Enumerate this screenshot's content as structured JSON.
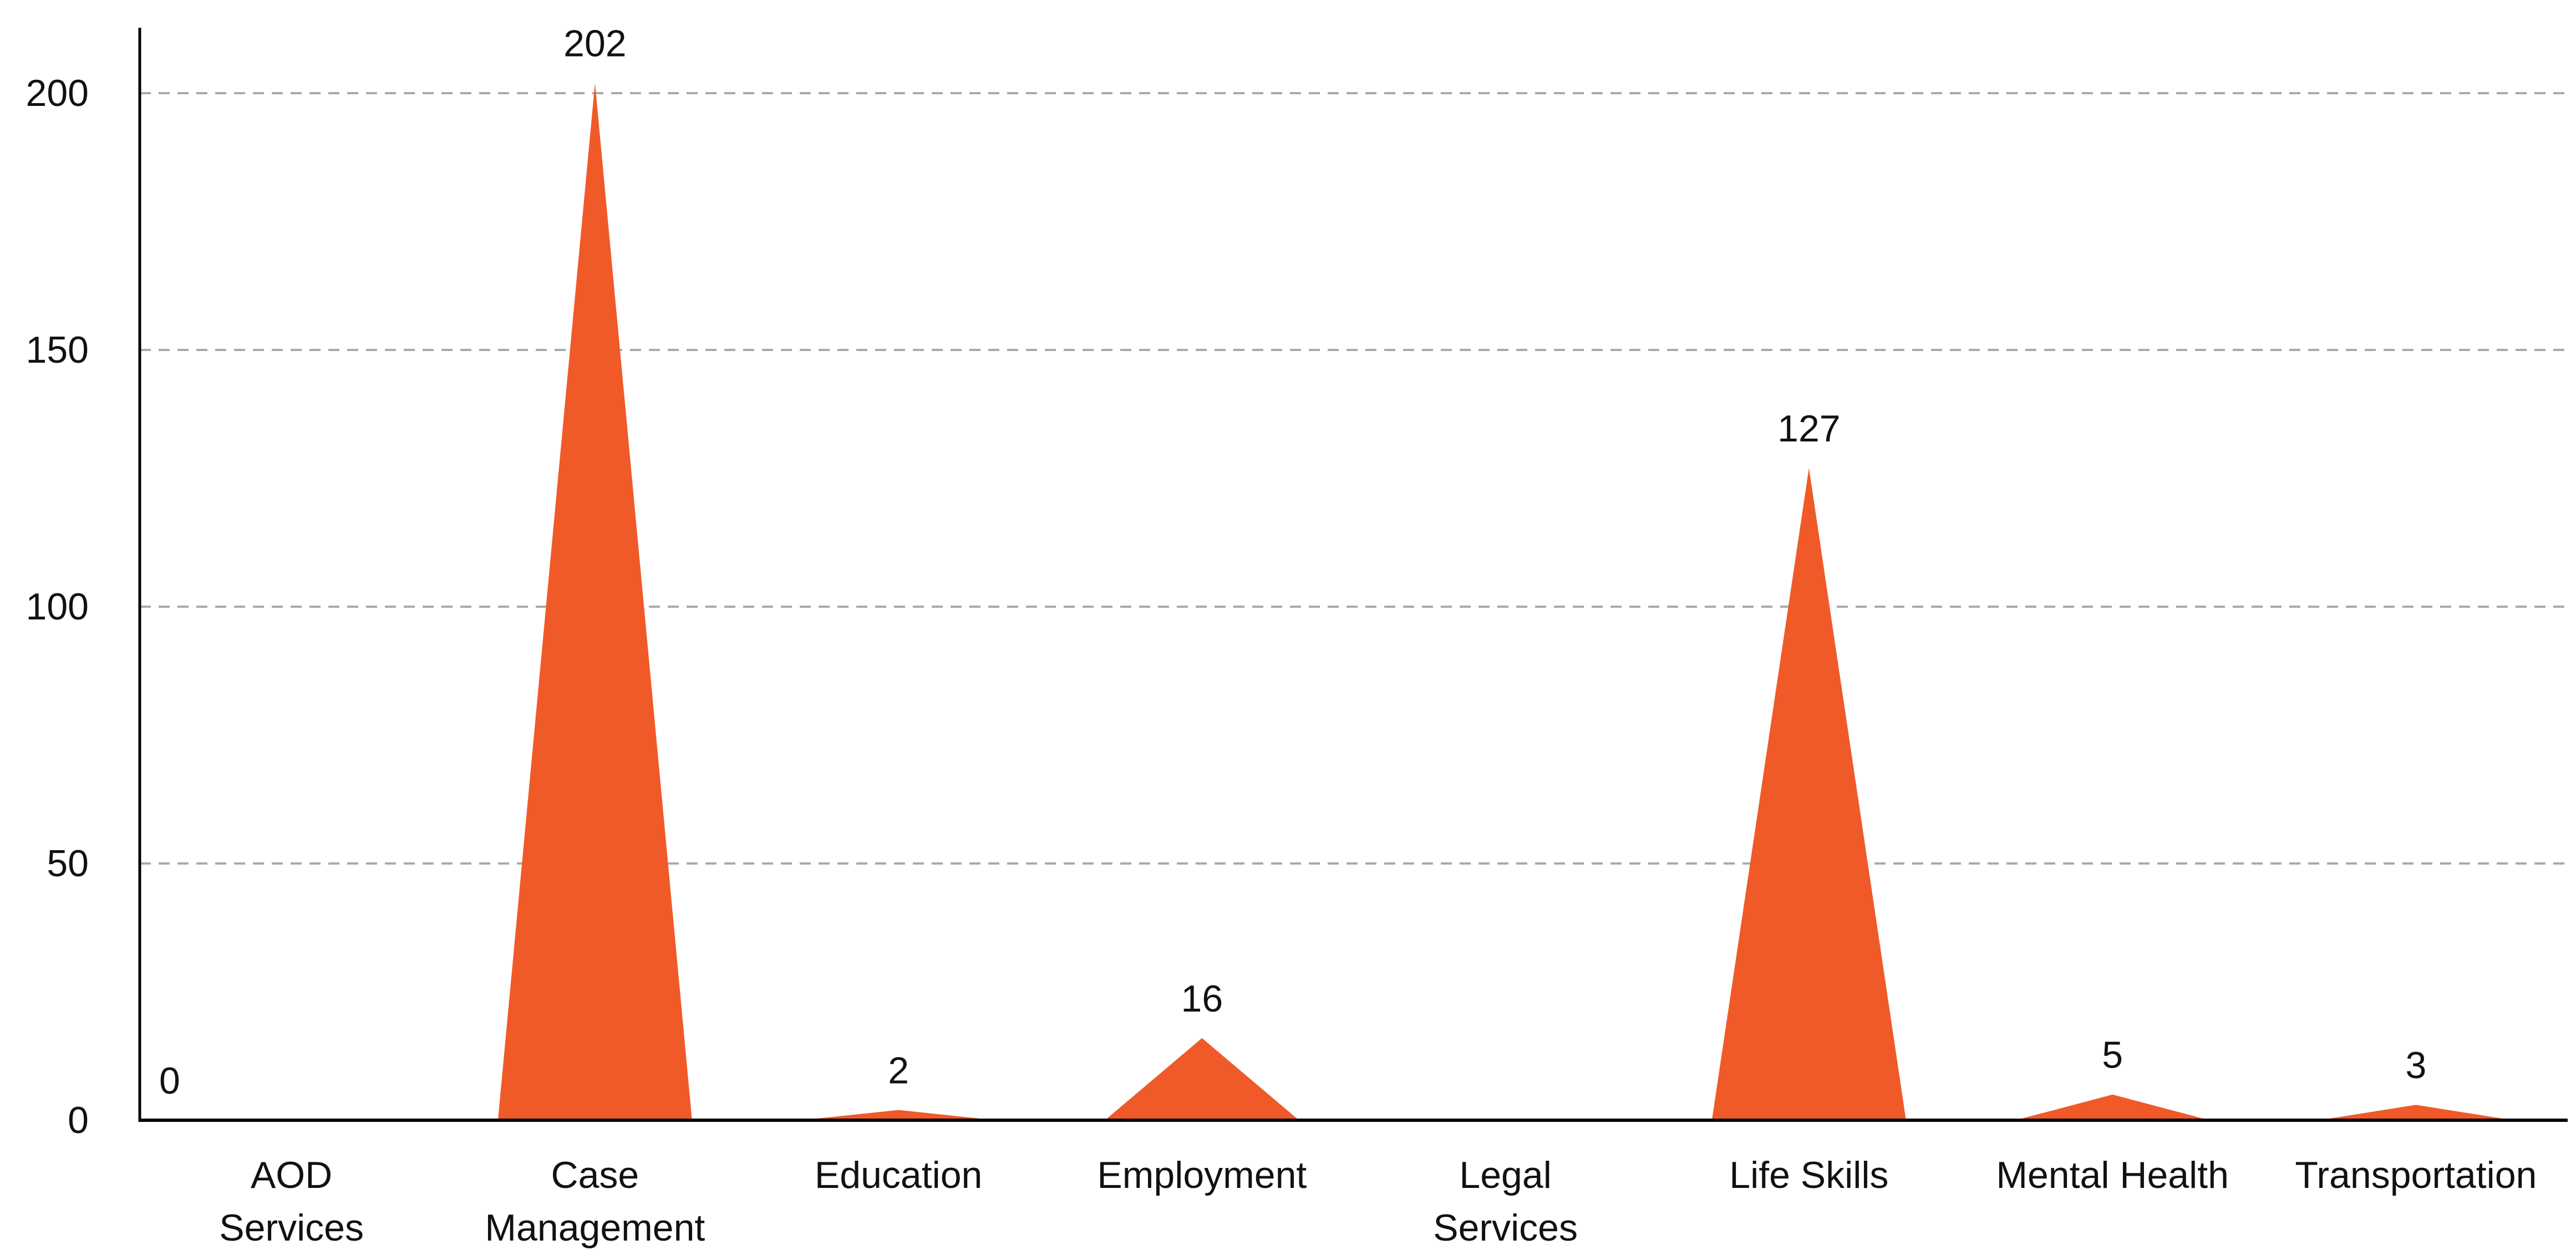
{
  "chart_data": {
    "type": "area",
    "title": "",
    "xlabel": "",
    "ylabel": "",
    "categories": [
      [
        "AOD",
        "Services"
      ],
      [
        "Case",
        "Management"
      ],
      [
        "Education"
      ],
      [
        "Employment"
      ],
      [
        "Legal",
        "Services"
      ],
      [
        "Life Skills"
      ],
      [
        "Mental Health"
      ],
      [
        "Transportation"
      ]
    ],
    "values": [
      0,
      202,
      2,
      16,
      0,
      127,
      5,
      3
    ],
    "data_labels": [
      "0",
      "202",
      "2",
      "16",
      "",
      "127",
      "5",
      "3"
    ],
    "ylim": [
      0,
      200
    ],
    "yticks": [
      0,
      50,
      100,
      150,
      200
    ],
    "grid": true,
    "legend": "none",
    "colors": {
      "series": "#F05A28",
      "axis": "#000000",
      "grid": "#AAAAAA",
      "text": "#111111"
    }
  }
}
